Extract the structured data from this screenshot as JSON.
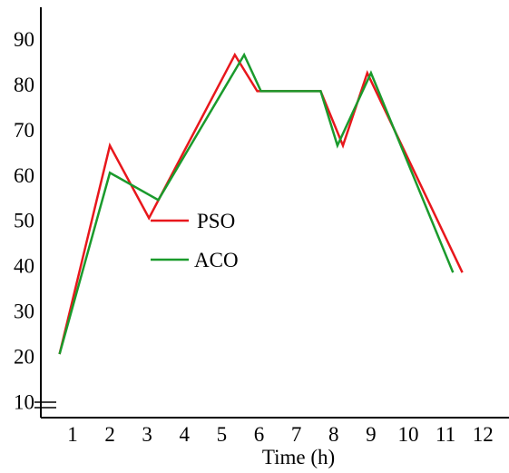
{
  "chart_data": {
    "type": "line",
    "xlabel": "Time (h)",
    "ylabel": "",
    "xlim": [
      0.15,
      12.7
    ],
    "ylim": [
      6.5,
      97
    ],
    "x_ticks": [
      1,
      2,
      3,
      4,
      5,
      6,
      7,
      8,
      9,
      10,
      11,
      12
    ],
    "y_ticks": [
      10,
      20,
      30,
      40,
      50,
      60,
      70,
      80,
      90
    ],
    "axis_break": true,
    "grid": false,
    "legend_position": "center-left",
    "series": [
      {
        "name": "PSO",
        "color": "#e8171c",
        "x": [
          0.65,
          2.0,
          3.05,
          5.35,
          5.95,
          6.7,
          7.65,
          8.25,
          8.9,
          11.45
        ],
        "y": [
          20.5,
          66.5,
          50.5,
          86.5,
          78.5,
          78.5,
          78.5,
          66.5,
          82.5,
          38.5
        ]
      },
      {
        "name": "ACO",
        "color": "#1a9a2c",
        "x": [
          0.65,
          2.0,
          3.3,
          5.6,
          6.05,
          6.7,
          7.65,
          8.1,
          9.0,
          11.2
        ],
        "y": [
          20.5,
          60.5,
          54.5,
          86.5,
          78.5,
          78.5,
          78.5,
          66.5,
          82.5,
          38.5
        ]
      }
    ]
  }
}
